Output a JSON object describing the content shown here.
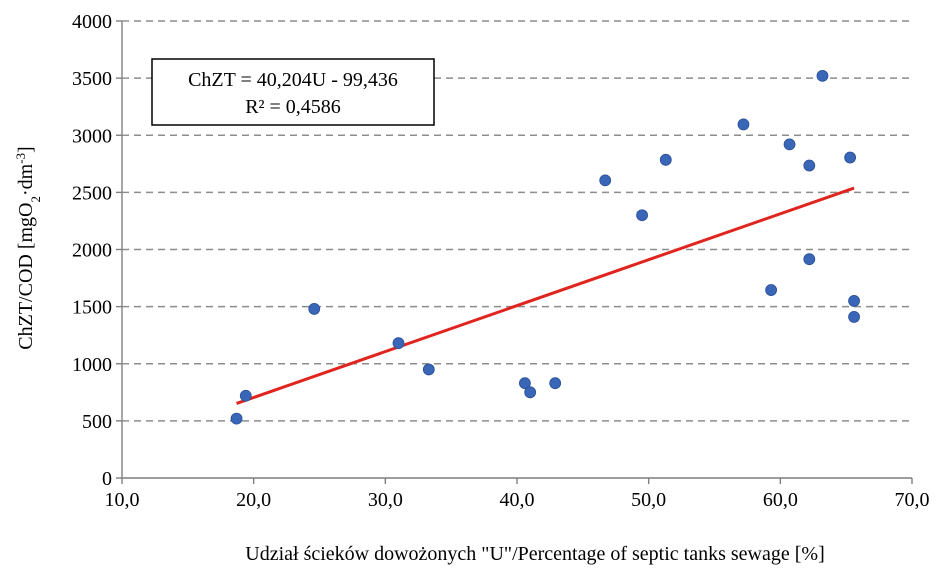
{
  "chart_data": {
    "type": "scatter",
    "title": "",
    "xlabel": "Udział ścieków dowożonych \"U\"/Percentage of septic tanks sewage  [%]",
    "ylabel": {
      "main": "ChZT/COD [mgO",
      "sub": "2",
      "mid": "·dm",
      "sup": "-3",
      "end": "]"
    },
    "xlim": [
      10,
      70
    ],
    "ylim": [
      0,
      4000
    ],
    "x_ticks": [
      {
        "value": 10,
        "label": "10,0"
      },
      {
        "value": 20,
        "label": "20,0"
      },
      {
        "value": 30,
        "label": "30,0"
      },
      {
        "value": 40,
        "label": "40,0"
      },
      {
        "value": 50,
        "label": "50,0"
      },
      {
        "value": 60,
        "label": "60,0"
      },
      {
        "value": 70,
        "label": "70,0"
      }
    ],
    "y_ticks": [
      {
        "value": 0,
        "label": "0"
      },
      {
        "value": 500,
        "label": "500"
      },
      {
        "value": 1000,
        "label": "1000"
      },
      {
        "value": 1500,
        "label": "1500"
      },
      {
        "value": 2000,
        "label": "2000"
      },
      {
        "value": 2500,
        "label": "2500"
      },
      {
        "value": 3000,
        "label": "3000"
      },
      {
        "value": 3500,
        "label": "3500"
      },
      {
        "value": 4000,
        "label": "4000"
      }
    ],
    "grid": "horizontal-dashed",
    "point_color": "#3a66b8",
    "points": [
      {
        "x": 18.7,
        "y": 520
      },
      {
        "x": 19.4,
        "y": 720
      },
      {
        "x": 24.6,
        "y": 1480
      },
      {
        "x": 31.0,
        "y": 1180
      },
      {
        "x": 33.3,
        "y": 950
      },
      {
        "x": 40.6,
        "y": 830
      },
      {
        "x": 41.0,
        "y": 750
      },
      {
        "x": 42.9,
        "y": 830
      },
      {
        "x": 46.7,
        "y": 2605
      },
      {
        "x": 49.5,
        "y": 2300
      },
      {
        "x": 51.3,
        "y": 2785
      },
      {
        "x": 57.2,
        "y": 3095
      },
      {
        "x": 59.3,
        "y": 1645
      },
      {
        "x": 60.7,
        "y": 2920
      },
      {
        "x": 62.2,
        "y": 2735
      },
      {
        "x": 62.2,
        "y": 1915
      },
      {
        "x": 63.2,
        "y": 3520
      },
      {
        "x": 65.3,
        "y": 2805
      },
      {
        "x": 65.6,
        "y": 1550
      },
      {
        "x": 65.6,
        "y": 1410
      }
    ],
    "trendline": {
      "type": "linear",
      "slope": 40.204,
      "intercept": -99.436,
      "x_range": [
        18.7,
        65.6
      ],
      "color": "#e0251f"
    },
    "annotation": {
      "equation": "ChZT = 40,204U - 99,436",
      "r_squared": "R² = 0,4586"
    }
  }
}
